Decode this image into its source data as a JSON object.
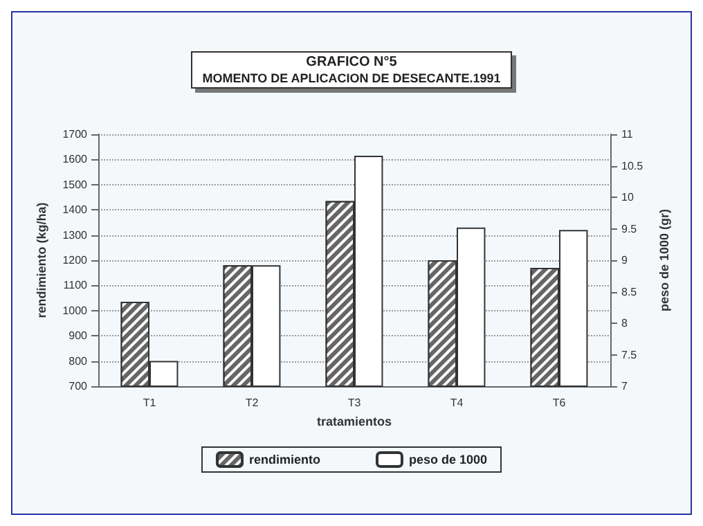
{
  "chart_data": {
    "type": "bar",
    "title": "GRAFICO N°5",
    "subtitle": "MOMENTO DE APLICACION DE DESECANTE.1991",
    "xlabel": "tratamientos",
    "ylabel": "rendimiento (kg/ha)",
    "y2label": "peso de 1000 (gr)",
    "categories": [
      "T1",
      "T2",
      "T3",
      "T4",
      "T6"
    ],
    "series": [
      {
        "name": "rendimiento",
        "color": "#666666",
        "values": [
          1035,
          1180,
          1435,
          1200,
          1170
        ]
      },
      {
        "name": "peso de 1000",
        "color": "#ffffff",
        "axis": "y2",
        "values": [
          7.4,
          8.92,
          10.66,
          9.52,
          9.48
        ]
      }
    ],
    "ylim": [
      700,
      1700
    ],
    "yticks": [
      700,
      800,
      900,
      1000,
      1100,
      1200,
      1300,
      1400,
      1500,
      1600,
      1700
    ],
    "y2lim": [
      7,
      11
    ],
    "y2ticks": [
      7,
      7.5,
      8,
      8.5,
      9,
      9.5,
      10,
      10.5,
      11
    ],
    "grid": "y",
    "legend": "bottom"
  }
}
